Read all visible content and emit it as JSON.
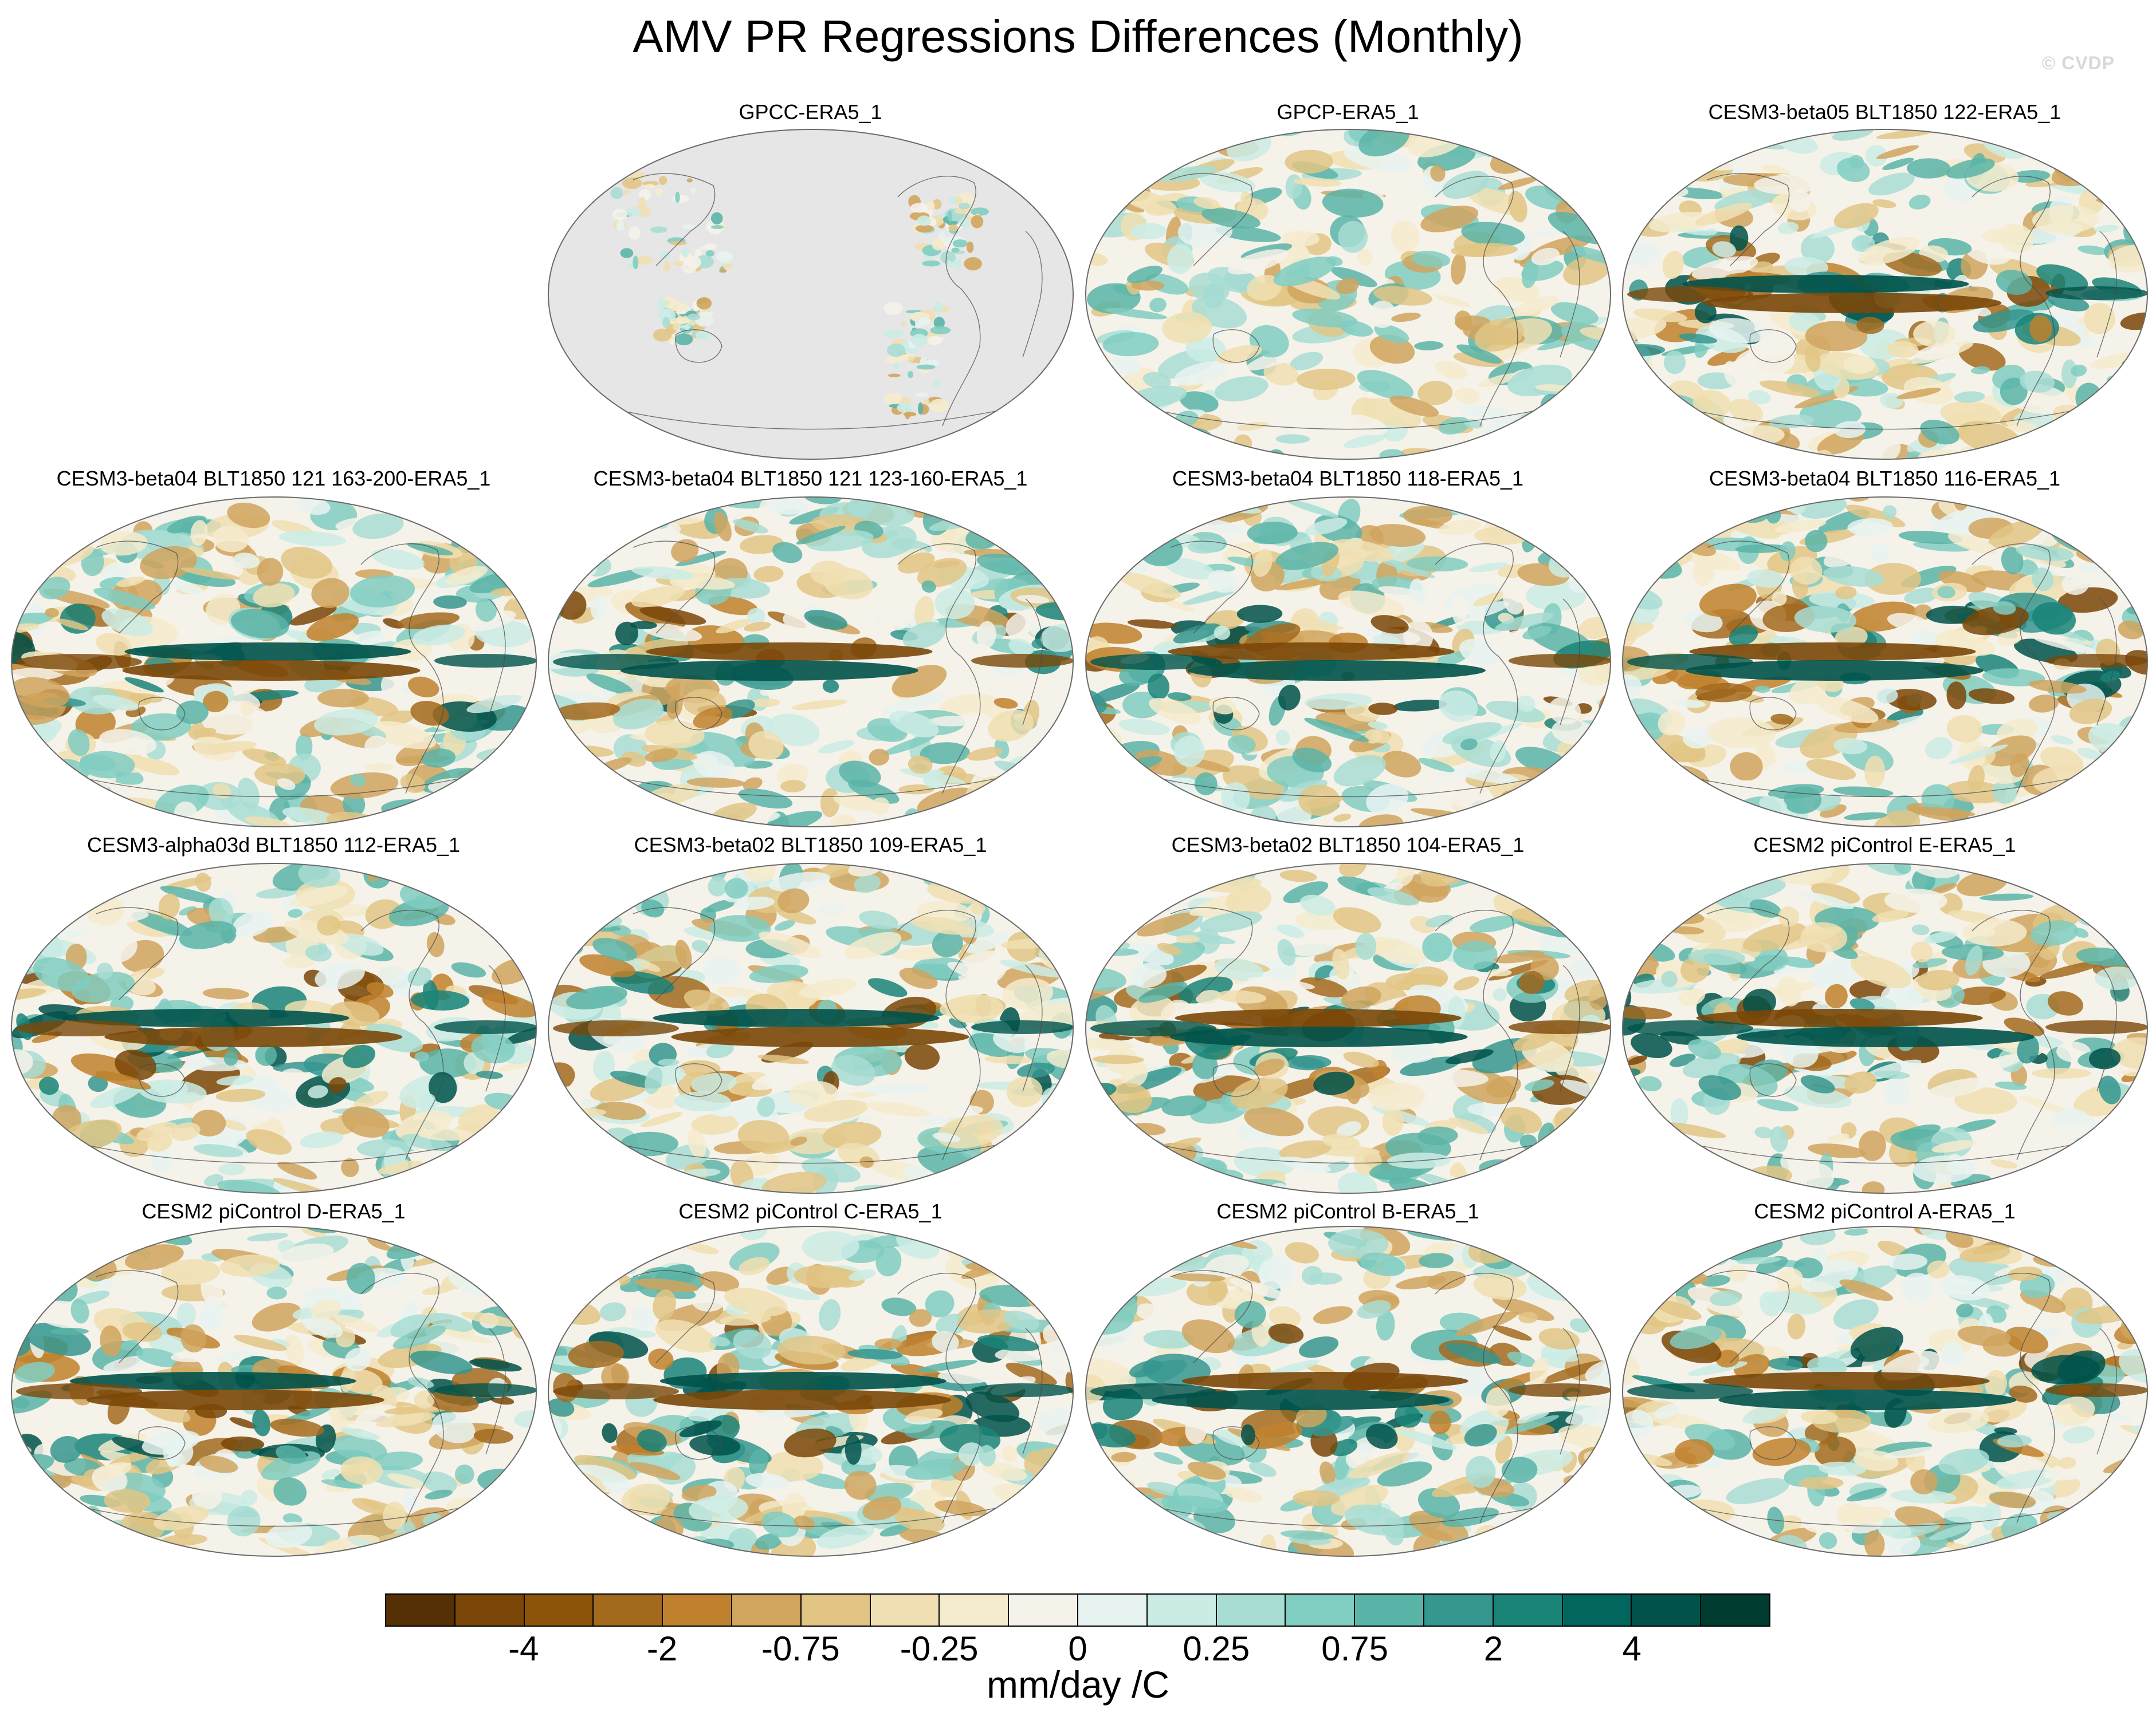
{
  "title": "AMV PR Regressions Differences (Monthly)",
  "watermark": "© CVDP",
  "panels": [
    {
      "label": "GPCC-ERA5_1",
      "style": "landonly"
    },
    {
      "label": "GPCP-ERA5_1",
      "style": "weak"
    },
    {
      "label": "CESM3-beta05 BLT1850 122-ERA5_1",
      "style": "strong"
    },
    {
      "label": "CESM3-beta04 BLT1850 121 163-200-ERA5_1",
      "style": "strong"
    },
    {
      "label": "CESM3-beta04 BLT1850 121 123-160-ERA5_1",
      "style": "strong"
    },
    {
      "label": "CESM3-beta04 BLT1850 118-ERA5_1",
      "style": "strong"
    },
    {
      "label": "CESM3-beta04 BLT1850 116-ERA5_1",
      "style": "strong"
    },
    {
      "label": "CESM3-alpha03d BLT1850 112-ERA5_1",
      "style": "strong"
    },
    {
      "label": "CESM3-beta02 BLT1850 109-ERA5_1",
      "style": "strong"
    },
    {
      "label": "CESM3-beta02 BLT1850 104-ERA5_1",
      "style": "strong"
    },
    {
      "label": "CESM2 piControl E-ERA5_1",
      "style": "strong"
    },
    {
      "label": "CESM2 piControl D-ERA5_1",
      "style": "strong"
    },
    {
      "label": "CESM2 piControl C-ERA5_1",
      "style": "strong"
    },
    {
      "label": "CESM2 piControl B-ERA5_1",
      "style": "strong"
    },
    {
      "label": "CESM2 piControl A-ERA5_1",
      "style": "strong"
    }
  ],
  "colorbar": {
    "colors": [
      "#553005",
      "#7a4708",
      "#8d5409",
      "#a36a1e",
      "#bf812d",
      "#d0a55e",
      "#e2c585",
      "#f0dfb2",
      "#f5ebcd",
      "#f5f2ea",
      "#e7f3f1",
      "#cbece5",
      "#a8ddd4",
      "#80cdc1",
      "#5ab4a7",
      "#35978f",
      "#1a8478",
      "#01665e",
      "#00524a",
      "#003c30"
    ],
    "tick_labels": [
      "-4",
      "-2",
      "-0.75",
      "-0.25",
      "0",
      "0.25",
      "0.75",
      "2",
      "4"
    ],
    "units": "mm/day /C"
  }
}
